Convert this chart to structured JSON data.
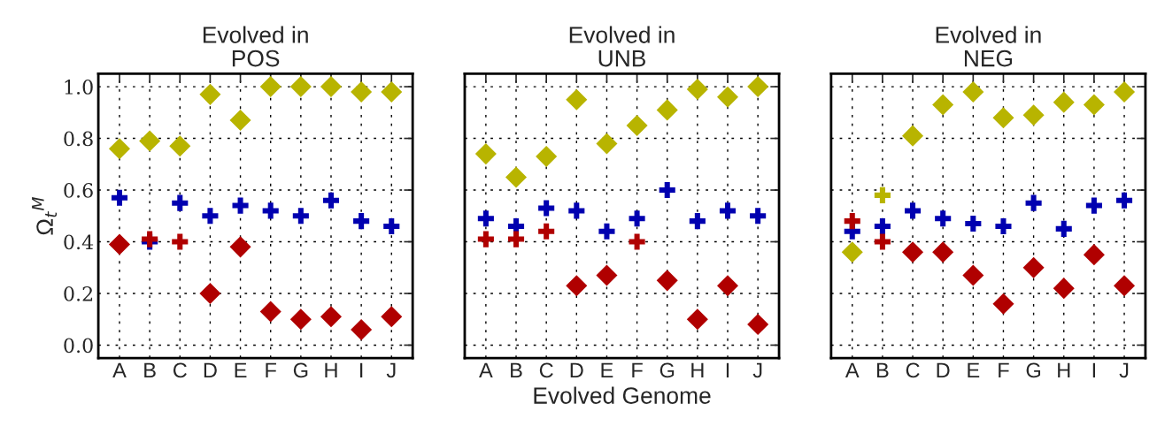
{
  "chart_data": [
    {
      "type": "scatter",
      "title": "Evolved in\nPOS",
      "ylabel": "Ω$_{t}$$^{M}$",
      "categories": [
        "A",
        "B",
        "C",
        "D",
        "E",
        "F",
        "G",
        "H",
        "I",
        "J"
      ],
      "ylim": [
        -0.05,
        1.05
      ],
      "yticks": [
        {
          "value": 0,
          "label": "0.0"
        },
        0.2,
        0.4,
        0.6,
        0.8,
        {
          "value": 1,
          "label": "1.0"
        }
      ],
      "grid": true,
      "legend": false,
      "series": [
        {
          "color": "#b8b400",
          "marker": "diamond",
          "values": [
            0.76,
            0.79,
            0.77,
            0.97,
            0.87,
            1.0,
            1.0,
            1.0,
            0.98,
            0.98
          ]
        },
        {
          "color": "#b00000",
          "marker": "diamond",
          "values": [
            0.39,
            null,
            null,
            0.2,
            0.38,
            0.13,
            0.1,
            0.11,
            0.06,
            0.11
          ]
        },
        {
          "color": "#0000b0",
          "marker": "cross",
          "values": [
            0.57,
            0.4,
            0.55,
            0.5,
            0.54,
            0.52,
            0.5,
            0.56,
            0.48,
            0.46
          ]
        },
        {
          "color": "#b00000",
          "marker": "cross",
          "values": [
            null,
            0.41,
            0.4,
            null,
            null,
            null,
            null,
            null,
            null,
            null
          ]
        }
      ]
    },
    {
      "type": "scatter",
      "title": "Evolved in\nUNB",
      "xlabel": "Evolved Genome",
      "categories": [
        "A",
        "B",
        "C",
        "D",
        "E",
        "F",
        "G",
        "H",
        "I",
        "J"
      ],
      "ylim": [
        -0.05,
        1.05
      ],
      "yticks": [
        0,
        0.2,
        0.4,
        0.6,
        0.8,
        1
      ],
      "tick_labels": "x",
      "grid": true,
      "legend": false,
      "series": [
        {
          "color": "#b8b400",
          "marker": "diamond",
          "values": [
            0.74,
            0.65,
            0.73,
            0.95,
            0.78,
            0.85,
            0.91,
            0.99,
            0.96,
            1.0
          ]
        },
        {
          "color": "#b00000",
          "marker": "diamond",
          "values": [
            null,
            null,
            null,
            0.23,
            0.27,
            null,
            0.25,
            0.1,
            0.23,
            0.08
          ]
        },
        {
          "color": "#0000b0",
          "marker": "cross",
          "values": [
            0.49,
            0.46,
            0.53,
            0.52,
            0.44,
            0.49,
            0.6,
            0.48,
            0.52,
            0.5
          ]
        },
        {
          "color": "#b00000",
          "marker": "cross",
          "values": [
            0.41,
            0.41,
            0.44,
            null,
            null,
            0.4,
            null,
            null,
            null,
            null
          ]
        }
      ]
    },
    {
      "type": "scatter",
      "title": "Evolved in\nNEG",
      "categories": [
        "A",
        "B",
        "C",
        "D",
        "E",
        "F",
        "G",
        "H",
        "I",
        "J"
      ],
      "ylim": [
        -0.05,
        1.05
      ],
      "yticks": [
        0,
        0.2,
        0.4,
        0.6,
        0.8,
        1
      ],
      "tick_labels": "x",
      "grid": true,
      "legend": false,
      "series": [
        {
          "color": "#b8b400",
          "marker": "diamond",
          "values": [
            0.36,
            null,
            0.81,
            0.93,
            0.98,
            0.88,
            0.89,
            0.94,
            0.93,
            0.98
          ]
        },
        {
          "color": "#b8b400",
          "marker": "cross",
          "values": [
            null,
            0.58,
            null,
            null,
            null,
            null,
            null,
            null,
            null,
            null
          ]
        },
        {
          "color": "#b00000",
          "marker": "diamond",
          "values": [
            null,
            null,
            0.36,
            0.36,
            0.27,
            0.16,
            0.3,
            0.22,
            0.35,
            0.23
          ]
        },
        {
          "color": "#0000b0",
          "marker": "cross",
          "values": [
            0.44,
            0.46,
            0.52,
            0.49,
            0.47,
            0.46,
            0.55,
            0.45,
            0.54,
            0.56
          ]
        },
        {
          "color": "#b00000",
          "marker": "cross",
          "values": [
            0.48,
            0.4,
            null,
            null,
            null,
            null,
            null,
            null,
            null,
            null
          ]
        }
      ]
    }
  ]
}
